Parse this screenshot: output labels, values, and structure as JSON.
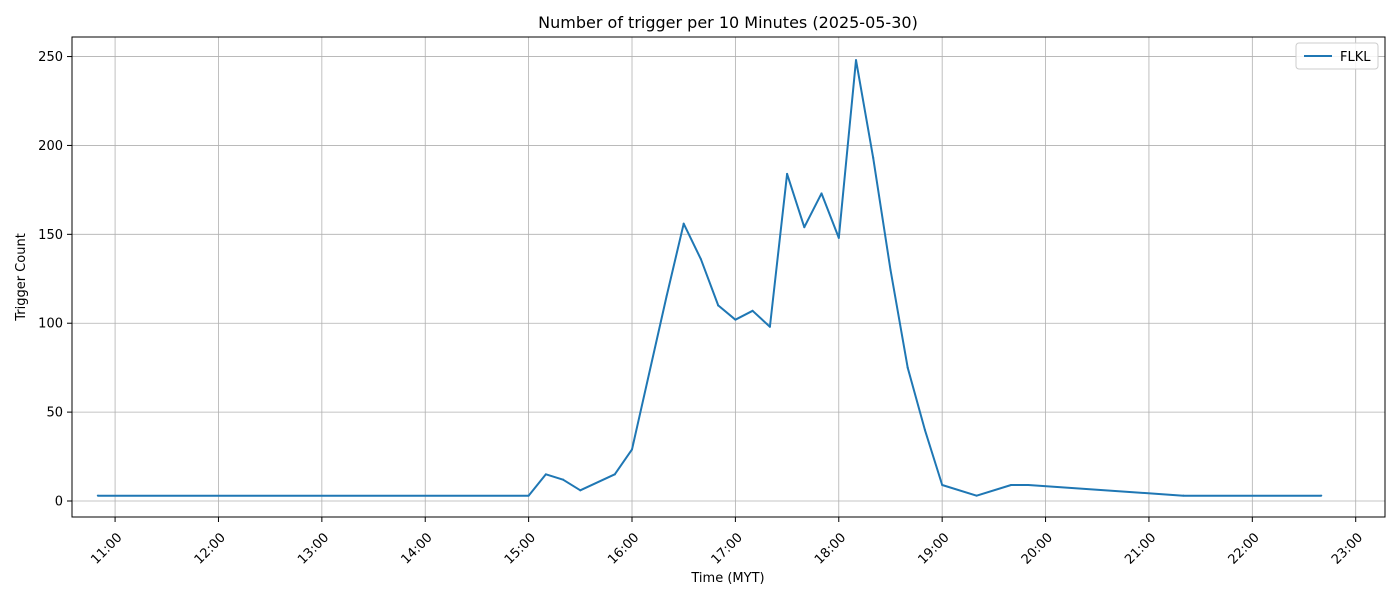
{
  "chart_data": {
    "type": "line",
    "title": "Number of trigger per 10 Minutes (2025-05-30)",
    "xlabel": "Time (MYT)",
    "ylabel": "Trigger Count",
    "x_unit": "time of day (HH:MM)",
    "xlim": [
      "10:35",
      "23:17"
    ],
    "ylim": [
      -9,
      261
    ],
    "x_ticks": [
      "11:00",
      "12:00",
      "13:00",
      "14:00",
      "15:00",
      "16:00",
      "17:00",
      "18:00",
      "19:00",
      "20:00",
      "21:00",
      "22:00",
      "23:00"
    ],
    "y_ticks": [
      0,
      50,
      100,
      150,
      200,
      250
    ],
    "grid": true,
    "legend_position": "top-right",
    "series": [
      {
        "name": "FLKL",
        "color": "#1f77b4",
        "points": [
          [
            "10:50",
            3
          ],
          [
            "15:00",
            3
          ],
          [
            "15:10",
            15
          ],
          [
            "15:20",
            12
          ],
          [
            "15:30",
            6
          ],
          [
            "15:50",
            15
          ],
          [
            "16:00",
            29
          ],
          [
            "16:20",
            115
          ],
          [
            "16:30",
            156
          ],
          [
            "16:40",
            136
          ],
          [
            "16:50",
            110
          ],
          [
            "17:00",
            102
          ],
          [
            "17:10",
            107
          ],
          [
            "17:20",
            98
          ],
          [
            "17:30",
            184
          ],
          [
            "17:40",
            154
          ],
          [
            "17:50",
            173
          ],
          [
            "18:00",
            148
          ],
          [
            "18:10",
            248
          ],
          [
            "18:20",
            193
          ],
          [
            "18:30",
            130
          ],
          [
            "18:40",
            75
          ],
          [
            "18:50",
            40
          ],
          [
            "19:00",
            9
          ],
          [
            "19:20",
            3
          ],
          [
            "19:40",
            9
          ],
          [
            "19:50",
            9
          ],
          [
            "21:20",
            3
          ],
          [
            "22:40",
            3
          ]
        ]
      }
    ]
  }
}
